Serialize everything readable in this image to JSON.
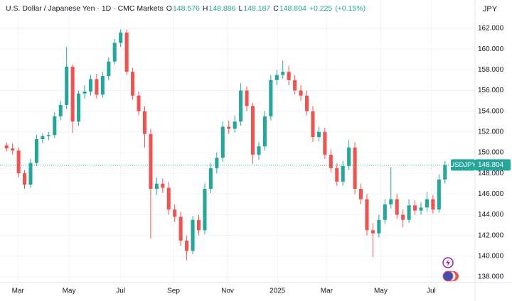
{
  "chart_data": {
    "type": "candlestick",
    "legend": {
      "symbol": "U.S. Dollar / Japanese Yen · 1D · CMC Markets",
      "o_label": "O",
      "o": 148.576,
      "h_label": "H",
      "h": 148.886,
      "l_label": "L",
      "l": 148.187,
      "c_label": "C",
      "c": 148.804,
      "change": "+0.225",
      "change_pct": "(+0.15%)"
    },
    "y_axis_label": "JPY",
    "ticker": "USDJPY",
    "up_color": "#26a69a",
    "down_color": "#ef5350",
    "grid": true,
    "xlim": [
      -0.5,
      73.5
    ],
    "xticks": [
      {
        "value": 1.9,
        "label": "Mar"
      },
      {
        "value": 10.4,
        "label": "May"
      },
      {
        "value": 19.0,
        "label": "Jul"
      },
      {
        "value": 27.8,
        "label": "Sep"
      },
      {
        "value": 36.8,
        "label": "Nov"
      },
      {
        "value": 45.1,
        "label": "2025"
      },
      {
        "value": 53.3,
        "label": "Mar"
      },
      {
        "value": 62.3,
        "label": "May"
      },
      {
        "value": 70.7,
        "label": "Jul"
      }
    ],
    "ylim": [
      137.45,
      164.74
    ],
    "yticks": [
      {
        "value": 138,
        "label": "138.000"
      },
      {
        "value": 140,
        "label": "140.000"
      },
      {
        "value": 142,
        "label": "142.000"
      },
      {
        "value": 144,
        "label": "144.000"
      },
      {
        "value": 146,
        "label": "146.000"
      },
      {
        "value": 148,
        "label": "148.000"
      },
      {
        "value": 150,
        "label": "150.000"
      },
      {
        "value": 152,
        "label": "152.000"
      },
      {
        "value": 154,
        "label": "154.000"
      },
      {
        "value": 156,
        "label": "156.000"
      },
      {
        "value": 158,
        "label": "158.000"
      },
      {
        "value": 160,
        "label": "160.000"
      },
      {
        "value": 162,
        "label": "162.000"
      }
    ],
    "open": [
      150.7,
      150.4,
      150.2,
      148.0,
      146.9,
      149.0,
      151.3,
      151.6,
      151.7,
      153.5,
      154.6,
      158.3,
      153.0,
      155.7,
      155.9,
      157.1,
      155.6,
      157.4,
      158.8,
      160.6,
      161.6,
      157.8,
      155.5,
      154.0,
      151.8,
      146.5,
      147.0,
      146.6,
      144.5,
      143.8,
      141.5,
      140.5,
      143.5,
      142.5,
      146.5,
      148.5,
      149.5,
      152.5,
      152.3,
      153.0,
      156.0,
      154.5,
      149.8,
      150.6,
      153.5,
      157.0,
      157.5,
      157.8,
      157.0,
      156.0,
      155.5,
      154.0,
      151.5,
      152.0,
      149.8,
      148.5,
      147.2,
      148.7,
      150.5,
      146.5,
      145.5,
      142.5,
      142.2,
      143.5,
      145.0,
      145.5,
      144.0,
      143.5,
      144.9,
      144.4,
      144.7,
      145.5,
      144.5,
      147.4
    ],
    "high": [
      151.0,
      150.9,
      150.5,
      148.3,
      149.4,
      151.7,
      151.9,
      152.0,
      153.9,
      155.0,
      160.2,
      158.5,
      156.0,
      156.5,
      157.5,
      157.6,
      157.8,
      159.2,
      161.0,
      161.9,
      161.9,
      158.2,
      155.9,
      154.5,
      152.3,
      147.6,
      147.5,
      147.2,
      145.0,
      144.3,
      142.0,
      143.9,
      144.0,
      147.0,
      149.0,
      150.0,
      153.0,
      153.1,
      153.6,
      156.7,
      156.4,
      154.8,
      151.0,
      154.0,
      157.5,
      158.0,
      158.9,
      158.4,
      157.5,
      156.5,
      156.0,
      154.5,
      152.5,
      152.4,
      150.3,
      149.0,
      149.2,
      151.2,
      151.0,
      147.0,
      146.0,
      143.2,
      144.0,
      145.5,
      148.6,
      146.0,
      144.5,
      145.5,
      145.4,
      145.2,
      146.2,
      145.9,
      147.9,
      149.2
    ],
    "low": [
      150.1,
      149.8,
      147.6,
      146.5,
      146.6,
      148.7,
      150.9,
      151.2,
      151.4,
      153.1,
      154.2,
      151.9,
      152.6,
      155.2,
      155.5,
      155.2,
      155.3,
      157.0,
      158.5,
      160.2,
      157.5,
      155.1,
      153.6,
      150.5,
      141.7,
      145.9,
      146.1,
      144.0,
      143.3,
      141.0,
      139.6,
      140.2,
      142.0,
      142.1,
      146.1,
      148.0,
      149.1,
      151.8,
      151.9,
      152.6,
      154.0,
      148.9,
      149.3,
      150.2,
      153.1,
      156.5,
      157.1,
      156.5,
      155.6,
      155.0,
      153.6,
      151.0,
      151.1,
      149.4,
      148.1,
      146.8,
      146.8,
      148.3,
      146.0,
      145.0,
      142.0,
      139.9,
      141.8,
      143.1,
      144.6,
      143.6,
      142.8,
      143.2,
      144.0,
      144.0,
      144.3,
      144.1,
      144.2,
      147.0
    ],
    "close": [
      150.4,
      150.2,
      148.0,
      146.9,
      149.0,
      151.3,
      151.6,
      151.7,
      153.5,
      154.6,
      158.3,
      153.0,
      155.7,
      155.9,
      157.1,
      155.6,
      157.4,
      158.8,
      160.6,
      161.6,
      157.8,
      155.5,
      154.0,
      151.8,
      146.5,
      147.0,
      146.6,
      144.5,
      143.8,
      141.5,
      140.5,
      143.5,
      142.5,
      146.5,
      148.5,
      149.5,
      152.5,
      152.3,
      153.0,
      156.0,
      154.5,
      149.8,
      150.6,
      153.5,
      157.0,
      157.5,
      157.8,
      157.0,
      156.0,
      155.5,
      154.0,
      151.5,
      152.0,
      149.8,
      148.5,
      147.2,
      148.7,
      150.5,
      146.5,
      145.5,
      142.5,
      142.2,
      143.5,
      145.0,
      145.5,
      144.0,
      143.5,
      144.9,
      144.4,
      144.7,
      145.5,
      144.5,
      147.4,
      148.804
    ]
  }
}
